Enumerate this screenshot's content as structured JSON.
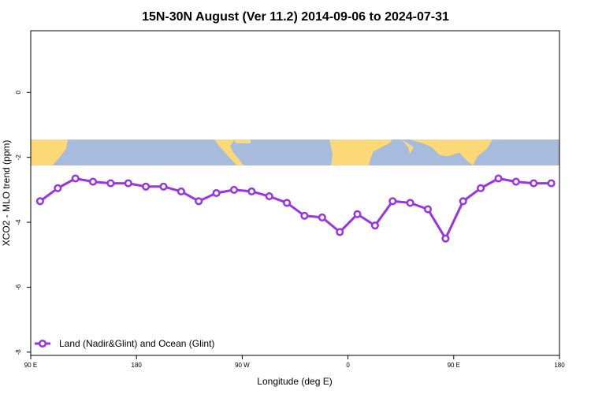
{
  "chart_data": {
    "type": "line",
    "title": "15N-30N August (Ver 11.2)   2014-09-06 to 2024-07-31",
    "xlabel": "Longitude (deg E)",
    "ylabel": "XCO2 - MLO trend (ppm)",
    "xlim": [
      90,
      540
    ],
    "ylim": [
      -8.1,
      1.9
    ],
    "x_ticks": [
      {
        "value": 90,
        "label": "90 E"
      },
      {
        "value": 180,
        "label": "180"
      },
      {
        "value": 270,
        "label": "90 W"
      },
      {
        "value": 360,
        "label": "0"
      },
      {
        "value": 450,
        "label": "90 E"
      },
      {
        "value": 540,
        "label": "180"
      }
    ],
    "y_ticks": [
      {
        "value": 0,
        "label": "0"
      },
      {
        "value": -2,
        "label": "-2"
      },
      {
        "value": -4,
        "label": "-4"
      },
      {
        "value": -6,
        "label": "-6"
      },
      {
        "value": -8,
        "label": "-8"
      }
    ],
    "map_band": {
      "y_top": -1.45,
      "y_bottom": -2.25,
      "ocean_color": "#a7bcdc",
      "land_color": "#fcd976"
    },
    "series": [
      {
        "name": "Land (Nadir&Glint) and Ocean (Glint)",
        "color": "#9933e6",
        "x": [
          98,
          113,
          128,
          143,
          158,
          173,
          188,
          203,
          218,
          233,
          248,
          263,
          278,
          293,
          308,
          323,
          338,
          353,
          368,
          383,
          398,
          413,
          428,
          443,
          458,
          473,
          488,
          503,
          518,
          533
        ],
        "y": [
          -3.35,
          -2.95,
          -2.65,
          -2.75,
          -2.8,
          -2.8,
          -2.9,
          -2.9,
          -3.05,
          -3.35,
          -3.1,
          -3.0,
          -3.05,
          -3.2,
          -3.4,
          -3.8,
          -3.85,
          -4.3,
          -3.75,
          -4.1,
          -3.35,
          -3.4,
          -3.6,
          -4.5,
          -3.35,
          -2.95,
          -2.65,
          -2.75,
          -2.8,
          -2.8
        ]
      }
    ],
    "legend_position": "bottom-left",
    "grid": false
  }
}
